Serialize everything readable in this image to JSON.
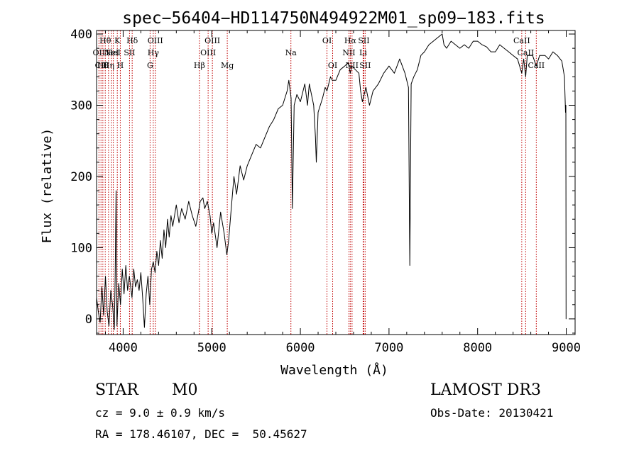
{
  "chart_data": {
    "type": "line",
    "title": "spec−56404−HD114750N494922M01_sp09−183.fits",
    "xlabel": "Wavelength (Å)",
    "ylabel": "Flux (relative)",
    "xlim": [
      3700,
      9100
    ],
    "ylim": [
      -22,
      405
    ],
    "xticks": [
      4000,
      5000,
      6000,
      7000,
      8000,
      9000
    ],
    "yticks": [
      0,
      100,
      200,
      300,
      400
    ],
    "grid": false,
    "line_color": "#000000",
    "marker_color": "#c00000",
    "series": [
      {
        "points": [
          [
            3700,
            30
          ],
          [
            3720,
            10
          ],
          [
            3740,
            -5
          ],
          [
            3760,
            45
          ],
          [
            3780,
            5
          ],
          [
            3800,
            60
          ],
          [
            3820,
            10
          ],
          [
            3840,
            -10
          ],
          [
            3860,
            40
          ],
          [
            3880,
            20
          ],
          [
            3900,
            -15
          ],
          [
            3910,
            60
          ],
          [
            3920,
            180
          ],
          [
            3930,
            -10
          ],
          [
            3950,
            50
          ],
          [
            3970,
            20
          ],
          [
            3990,
            70
          ],
          [
            4010,
            35
          ],
          [
            4030,
            75
          ],
          [
            4050,
            40
          ],
          [
            4070,
            60
          ],
          [
            4100,
            30
          ],
          [
            4120,
            70
          ],
          [
            4140,
            45
          ],
          [
            4160,
            55
          ],
          [
            4180,
            40
          ],
          [
            4200,
            65
          ],
          [
            4220,
            30
          ],
          [
            4240,
            -12
          ],
          [
            4260,
            35
          ],
          [
            4280,
            60
          ],
          [
            4300,
            20
          ],
          [
            4320,
            70
          ],
          [
            4340,
            80
          ],
          [
            4360,
            65
          ],
          [
            4380,
            95
          ],
          [
            4400,
            75
          ],
          [
            4420,
            110
          ],
          [
            4440,
            85
          ],
          [
            4460,
            125
          ],
          [
            4480,
            100
          ],
          [
            4500,
            140
          ],
          [
            4520,
            115
          ],
          [
            4540,
            145
          ],
          [
            4560,
            130
          ],
          [
            4600,
            160
          ],
          [
            4630,
            135
          ],
          [
            4660,
            155
          ],
          [
            4700,
            140
          ],
          [
            4740,
            165
          ],
          [
            4780,
            145
          ],
          [
            4820,
            130
          ],
          [
            4850,
            150
          ],
          [
            4870,
            165
          ],
          [
            4900,
            170
          ],
          [
            4920,
            155
          ],
          [
            4950,
            165
          ],
          [
            4980,
            145
          ],
          [
            5000,
            120
          ],
          [
            5020,
            135
          ],
          [
            5060,
            100
          ],
          [
            5100,
            150
          ],
          [
            5140,
            120
          ],
          [
            5170,
            90
          ],
          [
            5190,
            110
          ],
          [
            5220,
            155
          ],
          [
            5250,
            200
          ],
          [
            5280,
            175
          ],
          [
            5320,
            215
          ],
          [
            5360,
            195
          ],
          [
            5400,
            215
          ],
          [
            5450,
            230
          ],
          [
            5500,
            245
          ],
          [
            5550,
            240
          ],
          [
            5600,
            255
          ],
          [
            5650,
            270
          ],
          [
            5700,
            280
          ],
          [
            5750,
            295
          ],
          [
            5800,
            300
          ],
          [
            5850,
            320
          ],
          [
            5870,
            335
          ],
          [
            5895,
            310
          ],
          [
            5910,
            155
          ],
          [
            5930,
            300
          ],
          [
            5960,
            315
          ],
          [
            6000,
            305
          ],
          [
            6050,
            330
          ],
          [
            6080,
            300
          ],
          [
            6100,
            330
          ],
          [
            6150,
            300
          ],
          [
            6170,
            255
          ],
          [
            6180,
            220
          ],
          [
            6200,
            290
          ],
          [
            6250,
            310
          ],
          [
            6280,
            325
          ],
          [
            6300,
            320
          ],
          [
            6340,
            340
          ],
          [
            6360,
            335
          ],
          [
            6400,
            335
          ],
          [
            6450,
            350
          ],
          [
            6500,
            355
          ],
          [
            6540,
            360
          ],
          [
            6563,
            345
          ],
          [
            6580,
            355
          ],
          [
            6620,
            350
          ],
          [
            6660,
            345
          ],
          [
            6680,
            320
          ],
          [
            6700,
            305
          ],
          [
            6740,
            325
          ],
          [
            6780,
            300
          ],
          [
            6820,
            320
          ],
          [
            6880,
            330
          ],
          [
            6940,
            345
          ],
          [
            7000,
            355
          ],
          [
            7060,
            345
          ],
          [
            7120,
            365
          ],
          [
            7180,
            345
          ],
          [
            7220,
            325
          ],
          [
            7235,
            75
          ],
          [
            7250,
            330
          ],
          [
            7280,
            340
          ],
          [
            7320,
            350
          ],
          [
            7360,
            370
          ],
          [
            7400,
            375
          ],
          [
            7450,
            385
          ],
          [
            7500,
            390
          ],
          [
            7550,
            395
          ],
          [
            7600,
            400
          ],
          [
            7620,
            385
          ],
          [
            7650,
            380
          ],
          [
            7700,
            390
          ],
          [
            7750,
            385
          ],
          [
            7800,
            380
          ],
          [
            7850,
            385
          ],
          [
            7900,
            380
          ],
          [
            7950,
            390
          ],
          [
            8000,
            390
          ],
          [
            8050,
            385
          ],
          [
            8100,
            382
          ],
          [
            8150,
            375
          ],
          [
            8200,
            375
          ],
          [
            8250,
            385
          ],
          [
            8300,
            380
          ],
          [
            8350,
            375
          ],
          [
            8400,
            370
          ],
          [
            8450,
            365
          ],
          [
            8498,
            345
          ],
          [
            8520,
            365
          ],
          [
            8542,
            340
          ],
          [
            8560,
            370
          ],
          [
            8620,
            370
          ],
          [
            8662,
            355
          ],
          [
            8700,
            370
          ],
          [
            8760,
            370
          ],
          [
            8800,
            365
          ],
          [
            8850,
            375
          ],
          [
            8900,
            370
          ],
          [
            8950,
            362
          ],
          [
            8980,
            340
          ],
          [
            8992,
            290
          ],
          [
            8996,
            300
          ],
          [
            8998,
            0
          ],
          [
            9000,
            0
          ]
        ]
      }
    ],
    "line_markers": [
      {
        "x": 3727,
        "labels": [
          "",
          "OII",
          ""
        ]
      },
      {
        "x": 3750,
        "labels": [
          "",
          "",
          "CII"
        ]
      },
      {
        "x": 3771,
        "labels": [
          "",
          "",
          "Hθ"
        ]
      },
      {
        "x": 3798,
        "labels": [
          "Hθ",
          "",
          ""
        ]
      },
      {
        "x": 3835,
        "labels": [
          "",
          "",
          "Hη"
        ]
      },
      {
        "x": 3869,
        "labels": [
          "",
          "NeI",
          ""
        ]
      },
      {
        "x": 3889,
        "labels": [
          "",
          "HeI",
          ""
        ]
      },
      {
        "x": 3934,
        "labels": [
          "K",
          "",
          ""
        ]
      },
      {
        "x": 3968,
        "labels": [
          "",
          "",
          "H"
        ]
      },
      {
        "x": 4072,
        "labels": [
          "",
          "SII",
          ""
        ]
      },
      {
        "x": 4102,
        "labels": [
          "Hδ",
          "",
          ""
        ]
      },
      {
        "x": 4304,
        "labels": [
          "",
          "",
          "G"
        ]
      },
      {
        "x": 4340,
        "labels": [
          "",
          "Hγ",
          ""
        ]
      },
      {
        "x": 4363,
        "labels": [
          "OIII",
          "",
          ""
        ]
      },
      {
        "x": 4861,
        "labels": [
          "",
          "",
          "Hβ"
        ]
      },
      {
        "x": 4959,
        "labels": [
          "",
          "OIII",
          ""
        ]
      },
      {
        "x": 5007,
        "labels": [
          "OIII",
          "",
          ""
        ]
      },
      {
        "x": 5175,
        "labels": [
          "",
          "",
          "Mg"
        ]
      },
      {
        "x": 5893,
        "labels": [
          "",
          "Na",
          ""
        ]
      },
      {
        "x": 6300,
        "labels": [
          "OI",
          "",
          ""
        ]
      },
      {
        "x": 6364,
        "labels": [
          "",
          "",
          "OI"
        ]
      },
      {
        "x": 6548,
        "labels": [
          "",
          "NII",
          ""
        ]
      },
      {
        "x": 6563,
        "labels": [
          "Hα",
          "",
          ""
        ]
      },
      {
        "x": 6583,
        "labels": [
          "",
          "",
          "NII"
        ]
      },
      {
        "x": 6708,
        "labels": [
          "",
          "Li",
          ""
        ]
      },
      {
        "x": 6716,
        "labels": [
          "SII",
          "",
          ""
        ]
      },
      {
        "x": 6731,
        "labels": [
          "",
          "",
          "SII"
        ]
      },
      {
        "x": 8498,
        "labels": [
          "CaII",
          "",
          ""
        ]
      },
      {
        "x": 8542,
        "labels": [
          "",
          "CaII",
          ""
        ]
      },
      {
        "x": 8662,
        "labels": [
          "",
          "",
          "CaII"
        ]
      }
    ]
  },
  "info": {
    "class": "STAR",
    "subclass": "M0",
    "cz": "cz = 9.0 ± 0.9 km/s",
    "radec": "RA = 178.46107, DEC =  50.45627",
    "survey": "LAMOST DR3",
    "obs_date": "Obs-Date: 20130421"
  }
}
